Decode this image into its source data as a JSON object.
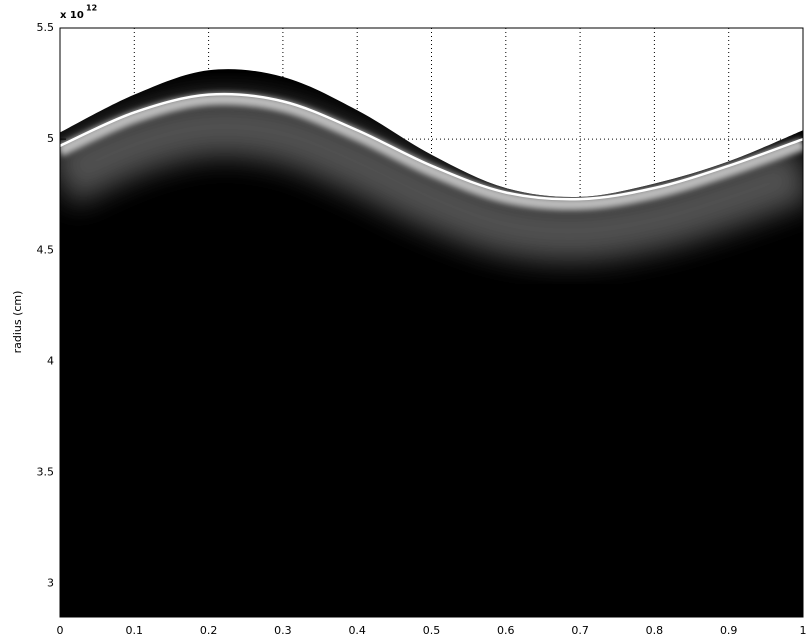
{
  "chart_data": {
    "type": "area",
    "y_label": "radius (cm)",
    "y_multiplier": "x 10",
    "y_multiplier_exponent": "12",
    "x": [
      0,
      0.1,
      0.2,
      0.3,
      0.4,
      0.5,
      0.6,
      0.7,
      0.8,
      0.9,
      1
    ],
    "series": [
      {
        "color": "#000000",
        "values": [
          5.03,
          5.2,
          5.31,
          5.28,
          5.13,
          4.93,
          4.78,
          4.74,
          4.8,
          4.9,
          5.04
        ]
      },
      {
        "color": "#ffffff",
        "values": [
          4.97,
          5.12,
          5.2,
          5.17,
          5.04,
          4.88,
          4.76,
          4.73,
          4.78,
          4.88,
          5.0
        ]
      }
    ],
    "xlim": [
      0,
      1
    ],
    "xticks": [
      0,
      0.1,
      0.2,
      0.3,
      0.4,
      0.5,
      0.6,
      0.7,
      0.8,
      0.9,
      1
    ],
    "ylim": [
      2.85,
      5.5
    ],
    "yticks": [
      3,
      3.5,
      4,
      4.5,
      5,
      5.5
    ],
    "grid": true
  }
}
